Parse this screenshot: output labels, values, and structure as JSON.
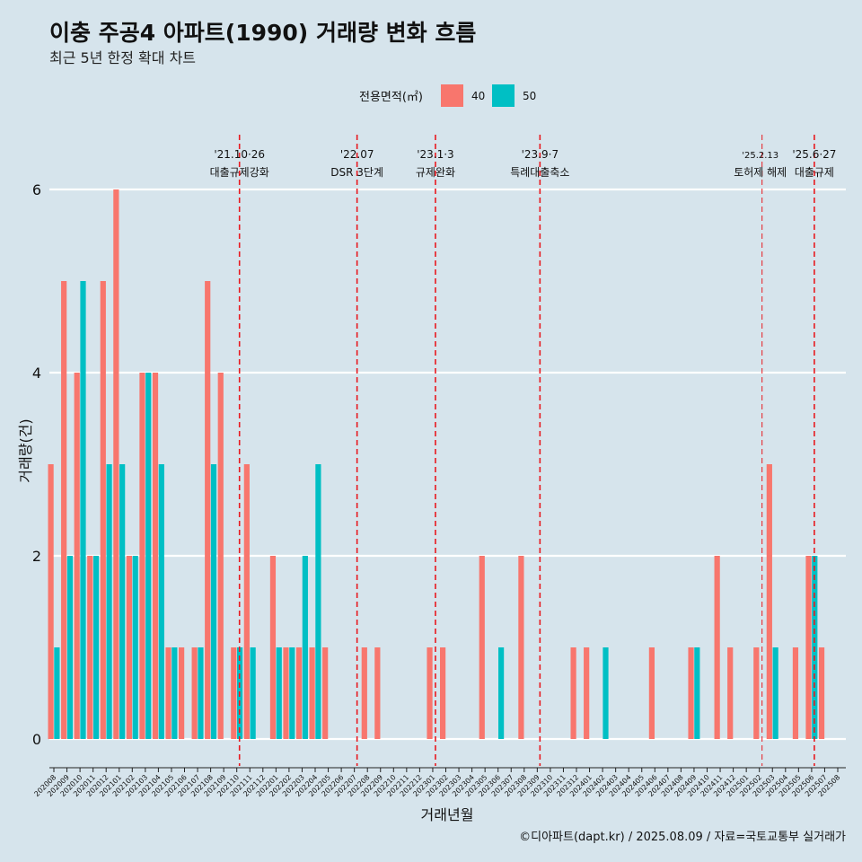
{
  "title": "이충 주공4 아파트(1990) 거래량 변화 흐름",
  "subtitle": "최근 5년 한정 확대 차트",
  "caption": "©디아파트(dapt.kr) / 2025.08.09 / 자료=국토교통부 실거래가",
  "colors": {
    "background": "#d6e4ec",
    "series_40": "#f8766d",
    "series_50": "#00bfc4",
    "event_line": "#e8191f",
    "grid": "#ffffff"
  },
  "chart_data": {
    "type": "bar",
    "title": "이충 주공4 아파트(1990) 거래량 변화 흐름",
    "subtitle": "최근 5년 한정 확대 차트",
    "xlabel": "거래년월",
    "ylabel": "거래량(건)",
    "ylim": [
      -0.3,
      6.5
    ],
    "yticks": [
      0,
      2,
      4,
      6
    ],
    "legend": {
      "title": "전용면적(㎡)",
      "position": "top"
    },
    "categories": [
      "202008",
      "202009",
      "202010",
      "202011",
      "202012",
      "202101",
      "202102",
      "202103",
      "202104",
      "202105",
      "202106",
      "202107",
      "202108",
      "202109",
      "202110",
      "202111",
      "202112",
      "202201",
      "202202",
      "202203",
      "202204",
      "202205",
      "202206",
      "202207",
      "202208",
      "202209",
      "202210",
      "202211",
      "202212",
      "202301",
      "202302",
      "202303",
      "202304",
      "202305",
      "202306",
      "202307",
      "202308",
      "202309",
      "202310",
      "202311",
      "202312",
      "202401",
      "202402",
      "202403",
      "202404",
      "202405",
      "202406",
      "202407",
      "202408",
      "202409",
      "202410",
      "202411",
      "202412",
      "202501",
      "202502",
      "202503",
      "202504",
      "202505",
      "202506",
      "202507",
      "202508"
    ],
    "series": [
      {
        "name": "40",
        "values": [
          3,
          5,
          4,
          2,
          5,
          6,
          2,
          4,
          4,
          1,
          1,
          1,
          5,
          4,
          1,
          3,
          0,
          2,
          1,
          1,
          1,
          1,
          0,
          0,
          1,
          1,
          0,
          0,
          0,
          1,
          1,
          0,
          0,
          2,
          0,
          0,
          2,
          0,
          0,
          0,
          1,
          1,
          0,
          0,
          0,
          0,
          1,
          0,
          0,
          1,
          0,
          2,
          1,
          0,
          1,
          3,
          0,
          1,
          2,
          1,
          0
        ]
      },
      {
        "name": "50",
        "values": [
          1,
          2,
          5,
          2,
          3,
          3,
          2,
          4,
          3,
          1,
          0,
          1,
          3,
          0,
          1,
          1,
          0,
          1,
          1,
          2,
          3,
          0,
          0,
          0,
          0,
          0,
          0,
          0,
          0,
          0,
          0,
          0,
          0,
          0,
          1,
          0,
          0,
          0,
          0,
          0,
          0,
          0,
          1,
          0,
          0,
          0,
          0,
          0,
          0,
          1,
          0,
          0,
          0,
          0,
          0,
          1,
          0,
          0,
          2,
          0,
          0
        ]
      }
    ],
    "events": [
      {
        "date": "'21.10·26",
        "label": "대출규제강화",
        "x": "202110"
      },
      {
        "date": "'22.07",
        "label": "DSR 3단계",
        "x": "202207"
      },
      {
        "date": "'23.1·3",
        "label": "규제완화",
        "x": "202301"
      },
      {
        "date": "'23.9·7",
        "label": "특례대출축소",
        "x": "202309"
      },
      {
        "date": "'25.2.13",
        "label": "토허제 해제",
        "x": "202502"
      },
      {
        "date": "'25.6·27",
        "label": "대출규제",
        "x": "202506"
      }
    ]
  }
}
